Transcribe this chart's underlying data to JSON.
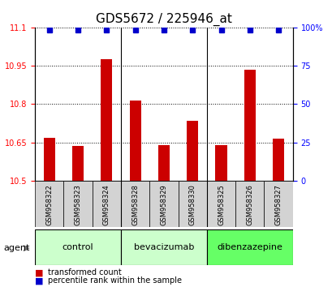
{
  "title": "GDS5672 / 225946_at",
  "samples": [
    "GSM958322",
    "GSM958323",
    "GSM958324",
    "GSM958328",
    "GSM958329",
    "GSM958330",
    "GSM958325",
    "GSM958326",
    "GSM958327"
  ],
  "bar_values": [
    10.667,
    10.635,
    10.975,
    10.815,
    10.638,
    10.735,
    10.638,
    10.935,
    10.665
  ],
  "percentile_values": [
    98,
    98,
    98,
    98,
    98,
    98,
    98,
    98,
    98
  ],
  "bar_color": "#cc0000",
  "percentile_color": "#0000cc",
  "ylim_left": [
    10.5,
    11.1
  ],
  "ylim_right": [
    0,
    100
  ],
  "yticks_left": [
    10.5,
    10.65,
    10.8,
    10.95,
    11.1
  ],
  "yticks_right": [
    0,
    25,
    50,
    75,
    100
  ],
  "groups": [
    {
      "label": "control",
      "indices": [
        0,
        1,
        2
      ],
      "color": "#ccffcc"
    },
    {
      "label": "bevacizumab",
      "indices": [
        3,
        4,
        5
      ],
      "color": "#ccffcc"
    },
    {
      "label": "dibenzazepine",
      "indices": [
        6,
        7,
        8
      ],
      "color": "#66ff66"
    }
  ],
  "legend_red_label": "transformed count",
  "legend_blue_label": "percentile rank within the sample",
  "agent_label": "agent",
  "title_fontsize": 11,
  "bar_baseline": 10.5
}
